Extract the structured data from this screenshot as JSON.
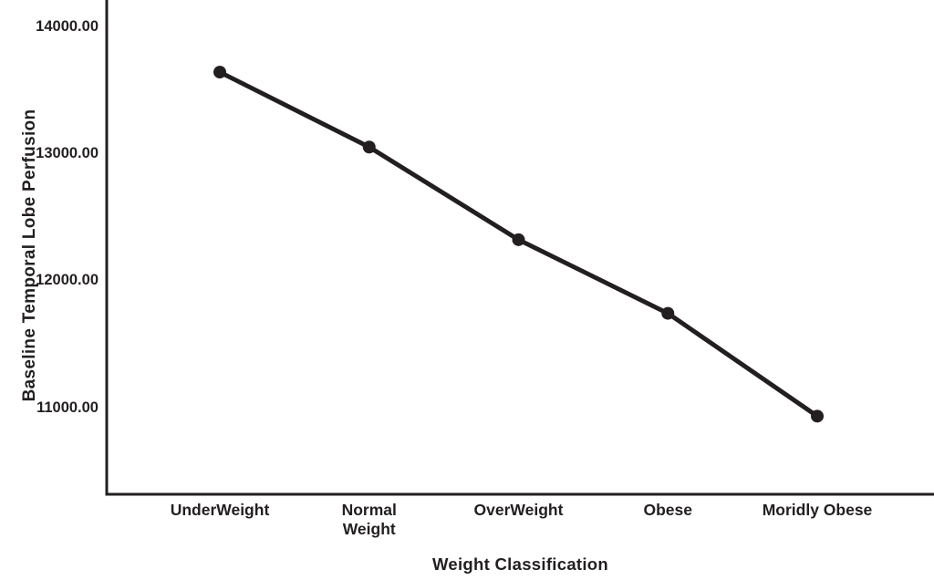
{
  "chart_data": {
    "type": "line",
    "title": "",
    "xlabel": "Weight Classification",
    "ylabel": "Baseline Temporal Lobe Perfusion",
    "categories": [
      "UnderWeight",
      "Normal\nWeight",
      "OverWeight",
      "Obese",
      "Moridly Obese"
    ],
    "values": [
      13640,
      13050,
      12320,
      11740,
      10930
    ],
    "yticks": [
      14000,
      13000,
      12000,
      11000
    ],
    "ytick_labels": [
      "14000.00",
      "13000.00",
      "12000.00",
      "11000.00"
    ],
    "ylim": [
      10200,
      14210
    ],
    "grid": false,
    "legend": false,
    "marker": "circle",
    "line_color": "#231f20",
    "background_color": "#ffffff"
  }
}
